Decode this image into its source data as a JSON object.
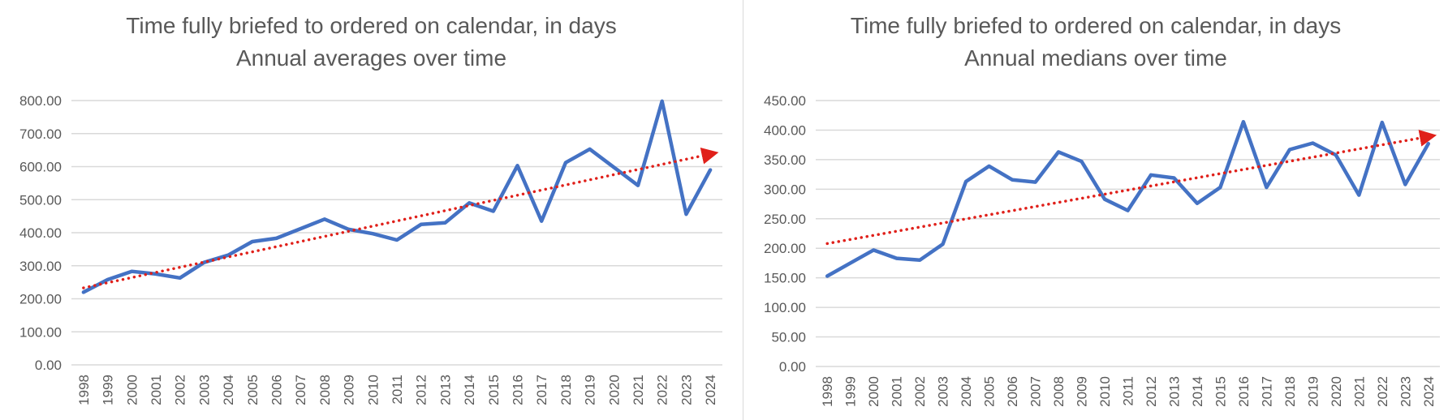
{
  "colors": {
    "line": "#4472C4",
    "trend": "#E0201A",
    "grid": "#D9D9D9",
    "text": "#595959"
  },
  "chart_data": [
    {
      "type": "line",
      "title": "Time fully briefed to ordered on calendar, in days",
      "subtitle": "Annual averages over time",
      "xlabel": "",
      "ylabel": "",
      "x": [
        "1998",
        "1999",
        "2000",
        "2001",
        "2002",
        "2003",
        "2004",
        "2005",
        "2006",
        "2007",
        "2008",
        "2009",
        "2010",
        "2011",
        "2012",
        "2013",
        "2014",
        "2015",
        "2016",
        "2017",
        "2018",
        "2019",
        "2020",
        "2021",
        "2022",
        "2023",
        "2024"
      ],
      "series": [
        {
          "values": [
            220,
            258,
            283,
            275,
            263,
            310,
            332,
            373,
            383,
            412,
            441,
            410,
            397,
            378,
            425,
            430,
            490,
            465,
            603,
            435,
            612,
            653,
            598,
            543,
            798,
            456,
            590
          ]
        }
      ],
      "trendline": {
        "type": "linear",
        "dotted": true,
        "arrow": true,
        "start": 233,
        "end": 638
      },
      "ylim": [
        0,
        800
      ],
      "yticks": [
        "0.00",
        "100.00",
        "200.00",
        "300.00",
        "400.00",
        "500.00",
        "600.00",
        "700.00",
        "800.00"
      ],
      "grid": true,
      "legend": "none"
    },
    {
      "type": "line",
      "title": "Time fully briefed to ordered on calendar, in days",
      "subtitle": "Annual medians over time",
      "xlabel": "",
      "ylabel": "",
      "x": [
        "1998",
        "1999",
        "2000",
        "2001",
        "2002",
        "2003",
        "2004",
        "2005",
        "2006",
        "2007",
        "2008",
        "2009",
        "2010",
        "2011",
        "2012",
        "2013",
        "2014",
        "2015",
        "2016",
        "2017",
        "2018",
        "2019",
        "2020",
        "2021",
        "2022",
        "2023",
        "2024"
      ],
      "series": [
        {
          "values": [
            153,
            175,
            197,
            183,
            180,
            207,
            313,
            339,
            316,
            312,
            363,
            347,
            283,
            264,
            324,
            319,
            276,
            303,
            414,
            303,
            367,
            378,
            358,
            290,
            413,
            308,
            377
          ]
        }
      ],
      "trendline": {
        "type": "linear",
        "dotted": true,
        "arrow": true,
        "start": 208,
        "end": 389
      },
      "ylim": [
        0,
        450
      ],
      "yticks": [
        "0.00",
        "50.00",
        "100.00",
        "150.00",
        "200.00",
        "250.00",
        "300.00",
        "350.00",
        "400.00",
        "450.00"
      ],
      "grid": true,
      "legend": "none"
    }
  ]
}
